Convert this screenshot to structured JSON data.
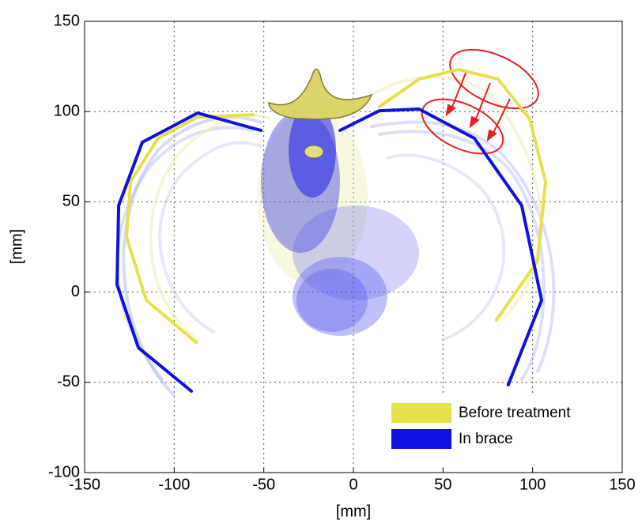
{
  "chart_data": {
    "type": "line",
    "xlabel": "[mm]",
    "ylabel": "[mm]",
    "xlim": [
      -150,
      150
    ],
    "ylim": [
      -100,
      150
    ],
    "xticks": [
      -150,
      -100,
      -50,
      0,
      50,
      100,
      150
    ],
    "yticks": [
      -100,
      -50,
      0,
      50,
      100,
      150
    ],
    "grid": true,
    "legend": "lower right",
    "series": [
      {
        "name": "Before treatment",
        "color": "#e6e04a",
        "x": [
          -87.8,
          -115.6,
          -126.6,
          -124.4,
          -109,
          -86.9,
          -56,
          null,
          14.5,
          36.6,
          58.6,
          80.7,
          98.3,
          107.2,
          102.8,
          79.8
        ],
        "values": [
          -27.8,
          -4.5,
          30.5,
          61.1,
          85.2,
          97,
          98.3,
          null,
          102.7,
          118,
          123.3,
          118,
          96.1,
          61.1,
          17.3,
          -15.5
        ]
      },
      {
        "name": "In brace",
        "color": "#1010e0",
        "x": [
          -90.4,
          -120,
          -131.9,
          -131,
          -117.8,
          -86.9,
          -51.6,
          null,
          -7.5,
          14.5,
          36.6,
          67.5,
          93.9,
          105,
          86.4
        ],
        "values": [
          -54.9,
          -30.8,
          4.2,
          48,
          83,
          99.2,
          89.6,
          null,
          89.6,
          100.5,
          101.4,
          85.2,
          48,
          -4.5,
          -51.4
        ]
      }
    ]
  }
}
